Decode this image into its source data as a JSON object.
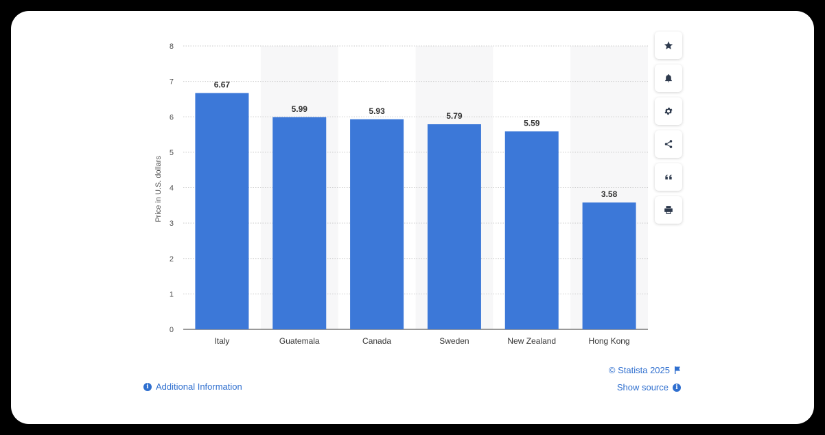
{
  "chart_data": {
    "type": "bar",
    "categories": [
      "Italy",
      "Guatemala",
      "Canada",
      "Sweden",
      "New Zealand",
      "Hong Kong"
    ],
    "values": [
      6.67,
      5.99,
      5.93,
      5.79,
      5.59,
      3.58
    ],
    "value_labels": [
      "6.67",
      "5.99",
      "5.93",
      "5.79",
      "5.59",
      "3.58"
    ],
    "title": "",
    "xlabel": "",
    "ylabel": "Price in U.S. dollars",
    "ylim": [
      0,
      8
    ],
    "yticks": [
      "0",
      "1",
      "2",
      "3",
      "4",
      "5",
      "6",
      "7",
      "8"
    ],
    "grid": true,
    "bar_color": "#3c78d8"
  },
  "toolbar": {
    "icons": [
      "star-icon",
      "bell-icon",
      "gear-icon",
      "share-icon",
      "quote-icon",
      "print-icon"
    ]
  },
  "footer": {
    "additional_info": "Additional Information",
    "copyright": "© Statista 2025",
    "show_source": "Show source"
  },
  "colors": {
    "accent": "#2f6fcf",
    "bar": "#3c78d8"
  }
}
